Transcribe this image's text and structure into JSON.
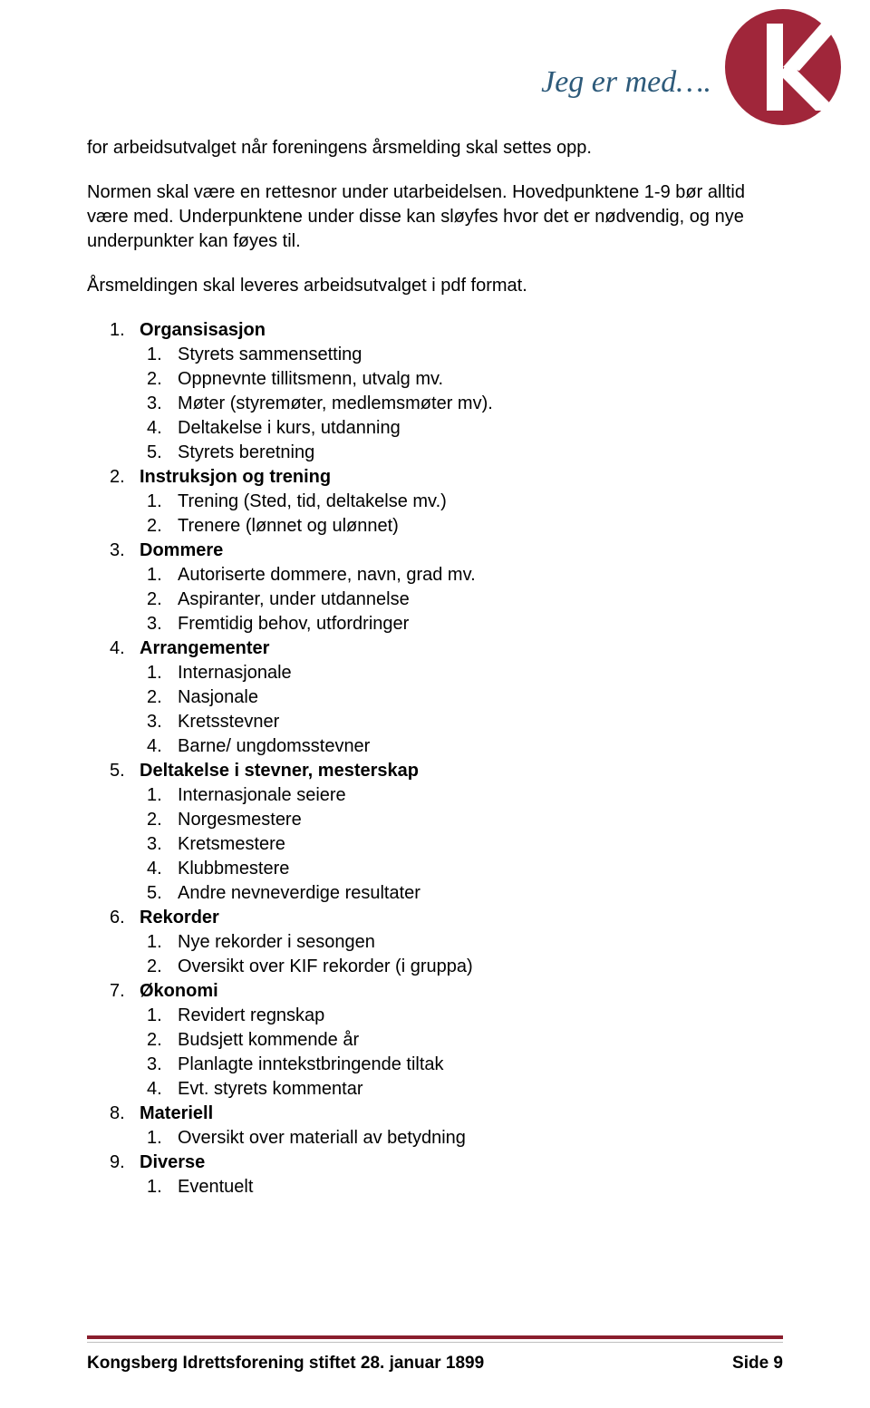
{
  "header": {
    "slogan": "Jeg er med….",
    "logo": {
      "bg_color": "#a0263a",
      "letter_color": "#ffffff"
    }
  },
  "intro": {
    "p1": "for arbeidsutvalget når foreningens årsmelding skal settes opp.",
    "p2": "Normen skal være en rettesnor under utarbeidelsen. Hovedpunktene 1-9 bør alltid være med. Underpunktene under disse kan sløyfes hvor det er nødvendig, og nye underpunkter kan føyes til.",
    "p3": "Årsmeldingen skal leveres arbeidsutvalget i pdf format."
  },
  "outline": [
    {
      "title": "Organsisasjon",
      "items": [
        "Styrets sammensetting",
        "Oppnevnte tillitsmenn, utvalg mv.",
        "Møter (styremøter, medlemsmøter mv).",
        "Deltakelse i kurs, utdanning",
        "Styrets beretning"
      ]
    },
    {
      "title": "Instruksjon og trening",
      "items": [
        "Trening (Sted, tid, deltakelse mv.)",
        "Trenere (lønnet og ulønnet)"
      ]
    },
    {
      "title": "Dommere",
      "items": [
        "Autoriserte dommere, navn, grad mv.",
        "Aspiranter, under utdannelse",
        "Fremtidig behov, utfordringer"
      ]
    },
    {
      "title": "Arrangementer",
      "items": [
        "Internasjonale",
        "Nasjonale",
        "Kretsstevner",
        "Barne/ ungdomsstevner"
      ]
    },
    {
      "title": "Deltakelse i stevner, mesterskap",
      "items": [
        "Internasjonale seiere",
        "Norgesmestere",
        "Kretsmestere",
        "Klubbmestere",
        "Andre nevneverdige resultater"
      ]
    },
    {
      "title": "Rekorder",
      "items": [
        "Nye rekorder i sesongen",
        "Oversikt over KIF rekorder (i gruppa)"
      ]
    },
    {
      "title": "Økonomi",
      "items": [
        "Revidert regnskap",
        "Budsjett kommende år",
        "Planlagte inntekstbringende tiltak",
        "Evt. styrets kommentar"
      ]
    },
    {
      "title": "Materiell",
      "items": [
        "Oversikt over materiall av betydning"
      ]
    },
    {
      "title": "Diverse",
      "items": [
        "Eventuelt"
      ]
    }
  ],
  "footer": {
    "left": "Kongsberg Idrettsforening stiftet 28. januar 1899",
    "right": "Side 9",
    "rule_color": "#8a1e2d"
  }
}
